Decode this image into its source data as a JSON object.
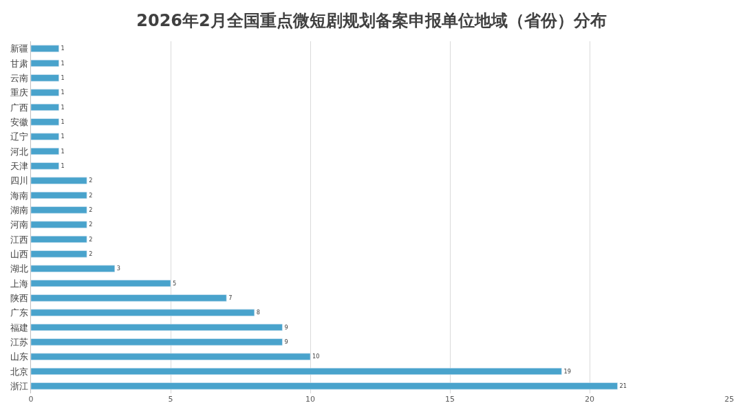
{
  "chart_data": {
    "type": "bar",
    "orientation": "horizontal",
    "title": "2026年2月全国重点微短剧规划备案申报单位地域（省份）分布",
    "categories": [
      "新疆",
      "甘肃",
      "云南",
      "重庆",
      "广西",
      "安徽",
      "辽宁",
      "河北",
      "天津",
      "四川",
      "海南",
      "湖南",
      "河南",
      "江西",
      "山西",
      "湖北",
      "上海",
      "陕西",
      "广东",
      "福建",
      "江苏",
      "山东",
      "北京",
      "浙江"
    ],
    "values": [
      1,
      1,
      1,
      1,
      1,
      1,
      1,
      1,
      1,
      2,
      2,
      2,
      2,
      2,
      2,
      3,
      5,
      7,
      8,
      9,
      9,
      10,
      19,
      21
    ],
    "color": "#49a3cc",
    "xlim": [
      0,
      25
    ],
    "xticks": [
      0,
      5,
      10,
      15,
      20,
      25
    ],
    "grid": "x",
    "data_labels": true,
    "legend": false
  }
}
